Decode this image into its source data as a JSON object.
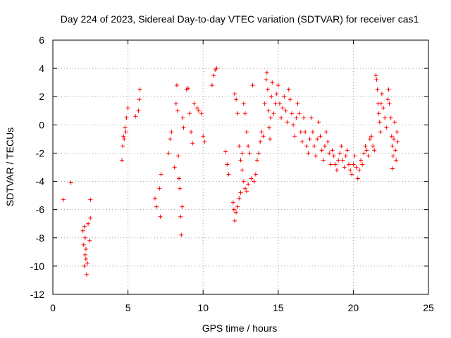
{
  "chart_data": {
    "type": "scatter",
    "title": "Day 224 of 2023, Sidereal Day-to-day VTEC variation (SDTVAR) for receiver cas1",
    "xlabel": "GPS time / hours",
    "ylabel": "SDTVAR / TECUs",
    "xlim": [
      0,
      25
    ],
    "ylim": [
      -12,
      6
    ],
    "xticks": [
      0,
      5,
      10,
      15,
      20,
      25
    ],
    "yticks": [
      -12,
      -10,
      -8,
      -6,
      -4,
      -2,
      0,
      2,
      4,
      6
    ],
    "xtick_labels": [
      "0",
      "5",
      "10",
      "15",
      "20",
      "25"
    ],
    "ytick_labels": [
      "-12",
      "-10",
      "-8",
      "-6",
      "-4",
      "-2",
      "0",
      "2",
      "4",
      "6"
    ],
    "grid": true,
    "marker": "+",
    "color": "#ff0000",
    "series": [
      {
        "name": "SDTVAR",
        "points": [
          [
            0.7,
            -5.3
          ],
          [
            1.2,
            -4.1
          ],
          [
            2.0,
            -7.5
          ],
          [
            2.05,
            -8.5
          ],
          [
            2.1,
            -10.0
          ],
          [
            2.15,
            -9.2
          ],
          [
            2.2,
            -8.8
          ],
          [
            2.25,
            -10.6
          ],
          [
            2.3,
            -9.8
          ],
          [
            2.35,
            -7.0
          ],
          [
            2.45,
            -8.2
          ],
          [
            2.5,
            -6.6
          ],
          [
            2.5,
            -5.3
          ],
          [
            2.1,
            -7.2
          ],
          [
            2.2,
            -9.5
          ],
          [
            2.15,
            -8.0
          ],
          [
            4.6,
            -2.5
          ],
          [
            4.65,
            -1.5
          ],
          [
            4.7,
            -0.8
          ],
          [
            4.8,
            -0.2
          ],
          [
            4.9,
            0.5
          ],
          [
            5.0,
            1.2
          ],
          [
            4.75,
            -1.0
          ],
          [
            4.85,
            -0.5
          ],
          [
            5.5,
            0.6
          ],
          [
            5.7,
            1.0
          ],
          [
            5.75,
            1.8
          ],
          [
            5.8,
            2.5
          ],
          [
            6.8,
            -5.2
          ],
          [
            6.9,
            -5.8
          ],
          [
            7.1,
            -4.5
          ],
          [
            7.15,
            -6.5
          ],
          [
            7.2,
            -3.5
          ],
          [
            7.7,
            -2.0
          ],
          [
            7.8,
            -1.0
          ],
          [
            7.9,
            -0.5
          ],
          [
            8.1,
            -3.0
          ],
          [
            8.2,
            1.5
          ],
          [
            8.25,
            2.8
          ],
          [
            8.3,
            1.0
          ],
          [
            8.35,
            -2.2
          ],
          [
            8.4,
            -3.8
          ],
          [
            8.45,
            -4.5
          ],
          [
            8.5,
            -6.5
          ],
          [
            8.55,
            -7.8
          ],
          [
            8.6,
            -5.8
          ],
          [
            8.65,
            0.5
          ],
          [
            8.7,
            -0.2
          ],
          [
            8.9,
            2.5
          ],
          [
            9.0,
            2.6
          ],
          [
            9.1,
            0.8
          ],
          [
            9.2,
            -0.5
          ],
          [
            9.3,
            -1.3
          ],
          [
            9.4,
            1.5
          ],
          [
            9.6,
            1.2
          ],
          [
            9.7,
            1.0
          ],
          [
            9.9,
            0.8
          ],
          [
            10.0,
            -0.8
          ],
          [
            10.1,
            -1.2
          ],
          [
            10.6,
            2.8
          ],
          [
            10.7,
            3.5
          ],
          [
            10.8,
            3.9
          ],
          [
            10.9,
            4.0
          ],
          [
            11.5,
            -1.9
          ],
          [
            11.6,
            -2.8
          ],
          [
            11.7,
            -3.5
          ],
          [
            12.0,
            -5.5
          ],
          [
            12.05,
            -6.0
          ],
          [
            12.1,
            -6.8
          ],
          [
            12.2,
            -6.2
          ],
          [
            12.3,
            -5.8
          ],
          [
            12.4,
            -5.2
          ],
          [
            12.5,
            -4.8
          ],
          [
            12.1,
            2.2
          ],
          [
            12.2,
            1.8
          ],
          [
            12.3,
            0.8
          ],
          [
            12.4,
            -1.5
          ],
          [
            12.5,
            -2.5
          ],
          [
            12.6,
            -3.2
          ],
          [
            12.7,
            -4.0
          ],
          [
            12.8,
            -4.5
          ],
          [
            12.9,
            -4.7
          ],
          [
            13.0,
            -4.2
          ],
          [
            12.6,
            -2.0
          ],
          [
            12.7,
            1.5
          ],
          [
            12.8,
            0.8
          ],
          [
            12.9,
            -0.5
          ],
          [
            13.0,
            -1.5
          ],
          [
            13.1,
            -2.0
          ],
          [
            13.2,
            -3.8
          ],
          [
            13.3,
            2.8
          ],
          [
            13.4,
            -4.0
          ],
          [
            13.5,
            -3.5
          ],
          [
            13.6,
            -2.5
          ],
          [
            13.7,
            -2.0
          ],
          [
            13.8,
            -1.2
          ],
          [
            13.9,
            -0.5
          ],
          [
            14.0,
            -0.8
          ],
          [
            14.1,
            1.5
          ],
          [
            14.2,
            3.2
          ],
          [
            14.25,
            3.7
          ],
          [
            14.3,
            2.5
          ],
          [
            14.35,
            1.0
          ],
          [
            14.4,
            -0.2
          ],
          [
            14.45,
            -1.0
          ],
          [
            14.5,
            0.5
          ],
          [
            14.55,
            2.0
          ],
          [
            14.6,
            3.0
          ],
          [
            14.7,
            0.8
          ],
          [
            14.8,
            1.5
          ],
          [
            14.9,
            2.2
          ],
          [
            15.0,
            2.8
          ],
          [
            15.1,
            1.5
          ],
          [
            15.2,
            0.5
          ],
          [
            15.3,
            1.2
          ],
          [
            15.4,
            2.0
          ],
          [
            15.5,
            1.0
          ],
          [
            15.6,
            0.2
          ],
          [
            15.7,
            2.5
          ],
          [
            15.8,
            1.8
          ],
          [
            15.9,
            0.8
          ],
          [
            16.0,
            0.0
          ],
          [
            16.1,
            -0.8
          ],
          [
            16.2,
            0.5
          ],
          [
            16.3,
            1.5
          ],
          [
            16.4,
            0.8
          ],
          [
            16.5,
            -0.5
          ],
          [
            16.6,
            -1.2
          ],
          [
            16.7,
            0.5
          ],
          [
            16.8,
            -0.5
          ],
          [
            16.9,
            -1.5
          ],
          [
            17.0,
            -2.0
          ],
          [
            17.1,
            -1.0
          ],
          [
            17.2,
            0.5
          ],
          [
            17.3,
            -0.5
          ],
          [
            17.4,
            -1.5
          ],
          [
            17.5,
            -2.2
          ],
          [
            17.6,
            -1.0
          ],
          [
            17.7,
            0.2
          ],
          [
            17.8,
            -0.8
          ],
          [
            17.9,
            -1.8
          ],
          [
            18.0,
            -2.5
          ],
          [
            18.1,
            -1.5
          ],
          [
            18.2,
            -0.5
          ],
          [
            18.3,
            -1.2
          ],
          [
            18.4,
            -2.0
          ],
          [
            18.5,
            -2.8
          ],
          [
            18.6,
            -1.8
          ],
          [
            18.7,
            -2.2
          ],
          [
            18.8,
            -2.8
          ],
          [
            18.9,
            -3.2
          ],
          [
            19.0,
            -2.5
          ],
          [
            19.1,
            -2.0
          ],
          [
            19.2,
            -1.5
          ],
          [
            19.3,
            -2.5
          ],
          [
            19.4,
            -3.0
          ],
          [
            19.5,
            -2.2
          ],
          [
            19.6,
            -1.8
          ],
          [
            19.7,
            -2.8
          ],
          [
            19.8,
            -3.2
          ],
          [
            19.9,
            -3.5
          ],
          [
            20.0,
            -2.8
          ],
          [
            20.1,
            -2.2
          ],
          [
            20.2,
            -3.0
          ],
          [
            20.3,
            -3.8
          ],
          [
            20.4,
            -3.2
          ],
          [
            20.5,
            -2.5
          ],
          [
            20.6,
            -2.8
          ],
          [
            20.7,
            -2.0
          ],
          [
            20.8,
            -1.5
          ],
          [
            20.9,
            -1.8
          ],
          [
            21.0,
            -2.2
          ],
          [
            21.1,
            -1.0
          ],
          [
            21.2,
            -0.8
          ],
          [
            21.3,
            -1.5
          ],
          [
            21.4,
            -1.8
          ],
          [
            21.5,
            3.5
          ],
          [
            21.55,
            3.2
          ],
          [
            21.6,
            2.5
          ],
          [
            21.65,
            1.5
          ],
          [
            21.7,
            0.8
          ],
          [
            21.75,
            0.2
          ],
          [
            21.8,
            -0.5
          ],
          [
            21.85,
            1.5
          ],
          [
            21.9,
            2.2
          ],
          [
            22.0,
            1.2
          ],
          [
            22.1,
            0.5
          ],
          [
            22.2,
            -0.2
          ],
          [
            22.3,
            1.8
          ],
          [
            22.35,
            2.5
          ],
          [
            22.4,
            1.5
          ],
          [
            22.5,
            0.5
          ],
          [
            22.55,
            -0.8
          ],
          [
            22.6,
            -1.5
          ],
          [
            22.65,
            -2.2
          ],
          [
            22.7,
            -1.0
          ],
          [
            22.75,
            0.2
          ],
          [
            22.8,
            -1.8
          ],
          [
            22.85,
            -2.5
          ],
          [
            22.9,
            -0.5
          ],
          [
            22.6,
            -3.1
          ],
          [
            22.95,
            -1.2
          ]
        ]
      }
    ]
  }
}
